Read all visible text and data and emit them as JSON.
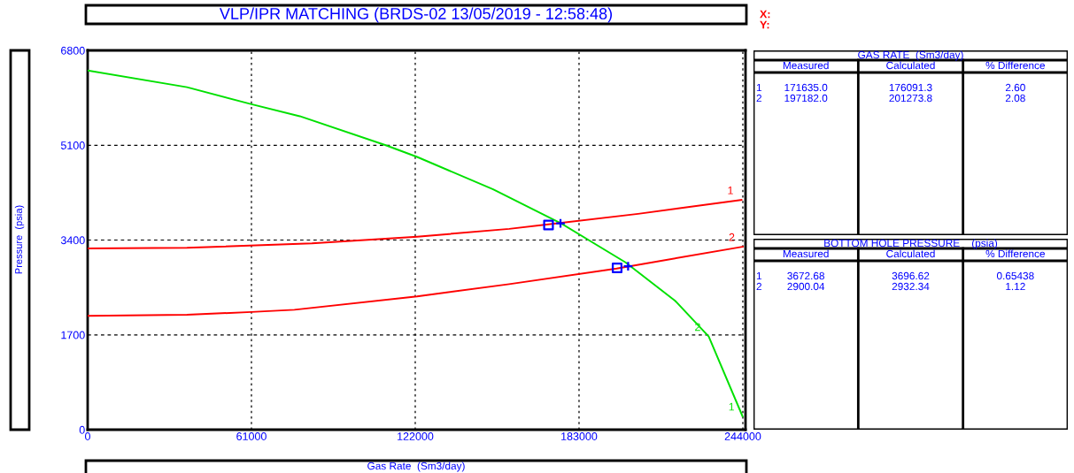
{
  "chart_data": [
    {
      "type": "line",
      "title": "VLP/IPR MATCHING (BRDS-02 13/05/2019 - 12:58:48)",
      "xlabel": "Gas Rate  (Sm3/day)",
      "ylabel": "Pressure  (psia)",
      "xlim": [
        0,
        245000
      ],
      "ylim": [
        0,
        6800
      ],
      "xticks": [
        0,
        61000,
        122000,
        183000,
        244000
      ],
      "yticks": [
        0,
        1700,
        3400,
        5100,
        6800
      ],
      "grid": true,
      "legend": false,
      "series": [
        {
          "color": "#00e000",
          "x": [
            0,
            37000,
            61000,
            79000,
            111000,
            122700,
            151000,
            176600,
            200300,
            218800,
            231300,
            243900
          ],
          "values": [
            6440,
            6140,
            5835,
            5620,
            5100,
            4890,
            4310,
            3690,
            3000,
            2310,
            1670,
            240
          ]
        },
        {
          "color": "#ff0000",
          "x": [
            0,
            37000,
            83500,
            122700,
            157000,
            173000,
            205000,
            243500
          ],
          "values": [
            3250,
            3260,
            3340,
            3460,
            3600,
            3690,
            3870,
            4120
          ]
        },
        {
          "color": "#ff0000",
          "x": [
            0,
            37000,
            61000,
            77000,
            122700,
            157000,
            197000,
            244000
          ],
          "values": [
            2040,
            2060,
            2110,
            2150,
            2390,
            2610,
            2890,
            3280
          ]
        },
        {
          "type": "scatter",
          "marker": "square",
          "color": "#0000ff",
          "x": [
            171635.0,
            197182.0
          ],
          "values": [
            3670,
            2900
          ]
        },
        {
          "type": "scatter",
          "marker": "cross",
          "color": "#0000ff",
          "x": [
            176091.3,
            201273.8
          ],
          "values": [
            3700,
            2930
          ]
        }
      ],
      "annotations": [
        {
          "text": "1",
          "x": 243500,
          "y": 4120
        },
        {
          "text": "2",
          "x": 244000,
          "y": 3280
        },
        {
          "text": "2",
          "x": 231300,
          "y": 1670
        },
        {
          "text": "1",
          "x": 243900,
          "y": 240
        },
        "X:",
        "Y:"
      ]
    },
    {
      "type": "other",
      "title": "GAS RATE  (Sm3/day)",
      "categories": [
        "Measured",
        "Calculated",
        "% Difference"
      ],
      "y_categories": [
        "1",
        "2"
      ],
      "cell_labels": [
        [
          "171635.0",
          "176091.3",
          "2.60"
        ],
        [
          "197182.0",
          "201273.8",
          "2.08"
        ]
      ]
    },
    {
      "type": "other",
      "title": "BOTTOM HOLE PRESSURE    (psia)",
      "categories": [
        "Measured",
        "Calculated",
        "% Difference"
      ],
      "y_categories": [
        "1",
        "2"
      ],
      "cell_labels": [
        [
          "3672.68",
          "3696.62",
          "0.65438"
        ],
        [
          "2900.04",
          "2932.34",
          "1.12"
        ]
      ]
    }
  ]
}
